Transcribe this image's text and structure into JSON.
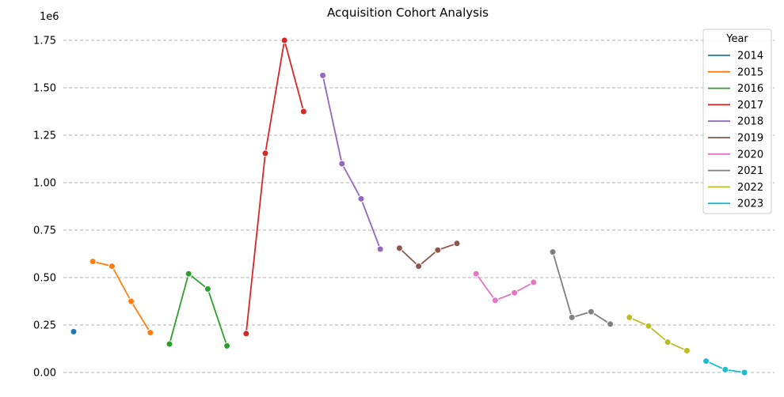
{
  "chart_data": {
    "type": "line",
    "title": "Acquisition Cohort Analysis",
    "xlabel": "",
    "ylabel": "",
    "y_offset_label": "1e6",
    "ylim": [
      0,
      1.8
    ],
    "y_ticks": [
      0.0,
      0.25,
      0.5,
      0.75,
      1.0,
      1.25,
      1.5,
      1.75
    ],
    "y_tick_labels": [
      "0.00",
      "0.25",
      "0.50",
      "0.75",
      "1.00",
      "1.25",
      "1.50",
      "1.75"
    ],
    "grid": "horizontal dashed",
    "legend_title": "Year",
    "legend_placement": "top-right",
    "series": [
      {
        "name": "2014",
        "color": "#1f77b4",
        "x": [
          0
        ],
        "values": [
          0.215
        ]
      },
      {
        "name": "2015",
        "color": "#ff7f0e",
        "x": [
          1,
          2,
          3,
          4
        ],
        "values": [
          0.585,
          0.56,
          0.375,
          0.21
        ]
      },
      {
        "name": "2016",
        "color": "#2ca02c",
        "x": [
          5,
          6,
          7,
          8
        ],
        "values": [
          0.15,
          0.52,
          0.44,
          0.14
        ]
      },
      {
        "name": "2017",
        "color": "#d62728",
        "x": [
          9,
          10,
          11,
          12
        ],
        "values": [
          0.205,
          1.155,
          1.75,
          1.375
        ]
      },
      {
        "name": "2018",
        "color": "#9467bd",
        "x": [
          13,
          14,
          15,
          16
        ],
        "values": [
          1.565,
          1.1,
          0.915,
          0.65
        ]
      },
      {
        "name": "2019",
        "color": "#8c564b",
        "x": [
          17,
          18,
          19,
          20
        ],
        "values": [
          0.655,
          0.56,
          0.645,
          0.68
        ]
      },
      {
        "name": "2020",
        "color": "#e377c2",
        "x": [
          21,
          22,
          23,
          24
        ],
        "values": [
          0.52,
          0.38,
          0.42,
          0.475
        ]
      },
      {
        "name": "2021",
        "color": "#7f7f7f",
        "x": [
          25,
          26,
          27,
          28
        ],
        "values": [
          0.635,
          0.29,
          0.32,
          0.255
        ]
      },
      {
        "name": "2022",
        "color": "#bcbd22",
        "x": [
          29,
          30,
          31,
          32
        ],
        "values": [
          0.29,
          0.245,
          0.16,
          0.115
        ]
      },
      {
        "name": "2023",
        "color": "#17becf",
        "x": [
          33,
          34,
          35
        ],
        "values": [
          0.06,
          0.015,
          0.0
        ]
      }
    ]
  }
}
